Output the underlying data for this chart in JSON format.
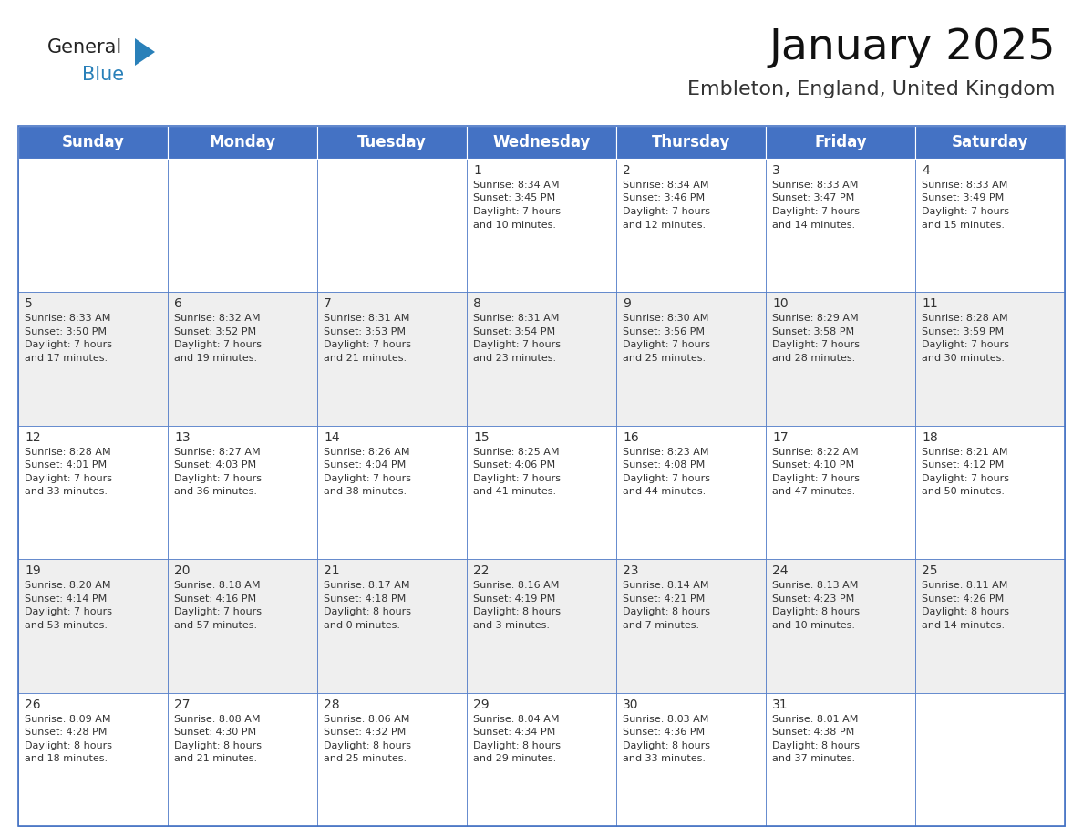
{
  "title": "January 2025",
  "subtitle": "Embleton, England, United Kingdom",
  "header_color": "#4472C4",
  "header_text_color": "#FFFFFF",
  "header_days": [
    "Sunday",
    "Monday",
    "Tuesday",
    "Wednesday",
    "Thursday",
    "Friday",
    "Saturday"
  ],
  "day_name_fontsize": 12,
  "title_fontsize": 34,
  "subtitle_fontsize": 16,
  "cell_text_fontsize": 8.0,
  "date_fontsize": 10,
  "background_color": "#FFFFFF",
  "cell_bg_color": "#FFFFFF",
  "alt_cell_bg_color": "#EFEFEF",
  "border_color": "#4472C4",
  "text_color": "#333333",
  "num_rows": 6,
  "num_cols": 7,
  "weeks": [
    [
      null,
      null,
      null,
      {
        "day": 1,
        "sunrise": "8:34 AM",
        "sunset": "3:45 PM",
        "daylight_line1": "Daylight: 7 hours",
        "daylight_line2": "and 10 minutes."
      },
      {
        "day": 2,
        "sunrise": "8:34 AM",
        "sunset": "3:46 PM",
        "daylight_line1": "Daylight: 7 hours",
        "daylight_line2": "and 12 minutes."
      },
      {
        "day": 3,
        "sunrise": "8:33 AM",
        "sunset": "3:47 PM",
        "daylight_line1": "Daylight: 7 hours",
        "daylight_line2": "and 14 minutes."
      },
      {
        "day": 4,
        "sunrise": "8:33 AM",
        "sunset": "3:49 PM",
        "daylight_line1": "Daylight: 7 hours",
        "daylight_line2": "and 15 minutes."
      }
    ],
    [
      {
        "day": 5,
        "sunrise": "8:33 AM",
        "sunset": "3:50 PM",
        "daylight_line1": "Daylight: 7 hours",
        "daylight_line2": "and 17 minutes."
      },
      {
        "day": 6,
        "sunrise": "8:32 AM",
        "sunset": "3:52 PM",
        "daylight_line1": "Daylight: 7 hours",
        "daylight_line2": "and 19 minutes."
      },
      {
        "day": 7,
        "sunrise": "8:31 AM",
        "sunset": "3:53 PM",
        "daylight_line1": "Daylight: 7 hours",
        "daylight_line2": "and 21 minutes."
      },
      {
        "day": 8,
        "sunrise": "8:31 AM",
        "sunset": "3:54 PM",
        "daylight_line1": "Daylight: 7 hours",
        "daylight_line2": "and 23 minutes."
      },
      {
        "day": 9,
        "sunrise": "8:30 AM",
        "sunset": "3:56 PM",
        "daylight_line1": "Daylight: 7 hours",
        "daylight_line2": "and 25 minutes."
      },
      {
        "day": 10,
        "sunrise": "8:29 AM",
        "sunset": "3:58 PM",
        "daylight_line1": "Daylight: 7 hours",
        "daylight_line2": "and 28 minutes."
      },
      {
        "day": 11,
        "sunrise": "8:28 AM",
        "sunset": "3:59 PM",
        "daylight_line1": "Daylight: 7 hours",
        "daylight_line2": "and 30 minutes."
      }
    ],
    [
      {
        "day": 12,
        "sunrise": "8:28 AM",
        "sunset": "4:01 PM",
        "daylight_line1": "Daylight: 7 hours",
        "daylight_line2": "and 33 minutes."
      },
      {
        "day": 13,
        "sunrise": "8:27 AM",
        "sunset": "4:03 PM",
        "daylight_line1": "Daylight: 7 hours",
        "daylight_line2": "and 36 minutes."
      },
      {
        "day": 14,
        "sunrise": "8:26 AM",
        "sunset": "4:04 PM",
        "daylight_line1": "Daylight: 7 hours",
        "daylight_line2": "and 38 minutes."
      },
      {
        "day": 15,
        "sunrise": "8:25 AM",
        "sunset": "4:06 PM",
        "daylight_line1": "Daylight: 7 hours",
        "daylight_line2": "and 41 minutes."
      },
      {
        "day": 16,
        "sunrise": "8:23 AM",
        "sunset": "4:08 PM",
        "daylight_line1": "Daylight: 7 hours",
        "daylight_line2": "and 44 minutes."
      },
      {
        "day": 17,
        "sunrise": "8:22 AM",
        "sunset": "4:10 PM",
        "daylight_line1": "Daylight: 7 hours",
        "daylight_line2": "and 47 minutes."
      },
      {
        "day": 18,
        "sunrise": "8:21 AM",
        "sunset": "4:12 PM",
        "daylight_line1": "Daylight: 7 hours",
        "daylight_line2": "and 50 minutes."
      }
    ],
    [
      {
        "day": 19,
        "sunrise": "8:20 AM",
        "sunset": "4:14 PM",
        "daylight_line1": "Daylight: 7 hours",
        "daylight_line2": "and 53 minutes."
      },
      {
        "day": 20,
        "sunrise": "8:18 AM",
        "sunset": "4:16 PM",
        "daylight_line1": "Daylight: 7 hours",
        "daylight_line2": "and 57 minutes."
      },
      {
        "day": 21,
        "sunrise": "8:17 AM",
        "sunset": "4:18 PM",
        "daylight_line1": "Daylight: 8 hours",
        "daylight_line2": "and 0 minutes."
      },
      {
        "day": 22,
        "sunrise": "8:16 AM",
        "sunset": "4:19 PM",
        "daylight_line1": "Daylight: 8 hours",
        "daylight_line2": "and 3 minutes."
      },
      {
        "day": 23,
        "sunrise": "8:14 AM",
        "sunset": "4:21 PM",
        "daylight_line1": "Daylight: 8 hours",
        "daylight_line2": "and 7 minutes."
      },
      {
        "day": 24,
        "sunrise": "8:13 AM",
        "sunset": "4:23 PM",
        "daylight_line1": "Daylight: 8 hours",
        "daylight_line2": "and 10 minutes."
      },
      {
        "day": 25,
        "sunrise": "8:11 AM",
        "sunset": "4:26 PM",
        "daylight_line1": "Daylight: 8 hours",
        "daylight_line2": "and 14 minutes."
      }
    ],
    [
      {
        "day": 26,
        "sunrise": "8:09 AM",
        "sunset": "4:28 PM",
        "daylight_line1": "Daylight: 8 hours",
        "daylight_line2": "and 18 minutes."
      },
      {
        "day": 27,
        "sunrise": "8:08 AM",
        "sunset": "4:30 PM",
        "daylight_line1": "Daylight: 8 hours",
        "daylight_line2": "and 21 minutes."
      },
      {
        "day": 28,
        "sunrise": "8:06 AM",
        "sunset": "4:32 PM",
        "daylight_line1": "Daylight: 8 hours",
        "daylight_line2": "and 25 minutes."
      },
      {
        "day": 29,
        "sunrise": "8:04 AM",
        "sunset": "4:34 PM",
        "daylight_line1": "Daylight: 8 hours",
        "daylight_line2": "and 29 minutes."
      },
      {
        "day": 30,
        "sunrise": "8:03 AM",
        "sunset": "4:36 PM",
        "daylight_line1": "Daylight: 8 hours",
        "daylight_line2": "and 33 minutes."
      },
      {
        "day": 31,
        "sunrise": "8:01 AM",
        "sunset": "4:38 PM",
        "daylight_line1": "Daylight: 8 hours",
        "daylight_line2": "and 37 minutes."
      },
      null
    ]
  ]
}
